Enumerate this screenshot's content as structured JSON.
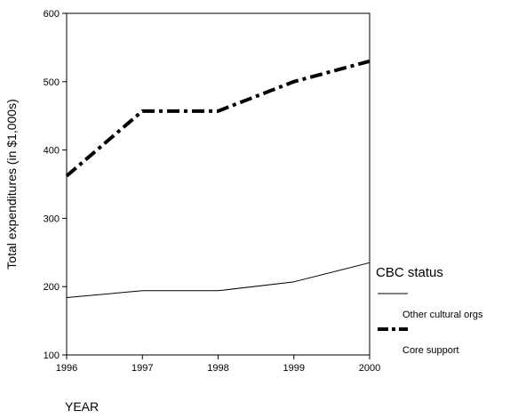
{
  "chart_data": {
    "type": "line",
    "xlabel": "YEAR",
    "ylabel": "Total expenditures (in $1,000s)",
    "x": [
      1996,
      1997,
      1998,
      1999,
      2000
    ],
    "xlim": [
      1996,
      2000
    ],
    "ylim": [
      100,
      600
    ],
    "yticks": [
      100,
      200,
      300,
      400,
      500,
      600
    ],
    "grid": false,
    "series": [
      {
        "name": "Other cultural orgs",
        "values": [
          184,
          194,
          194,
          207,
          235
        ],
        "color": "#000000",
        "style": "thin-solid"
      },
      {
        "name": "Core support",
        "values": [
          362,
          457,
          457,
          500,
          530
        ],
        "color": "#000000",
        "style": "thick-dash-dot"
      }
    ],
    "legend": {
      "title": "CBC status",
      "placement": "right"
    }
  }
}
